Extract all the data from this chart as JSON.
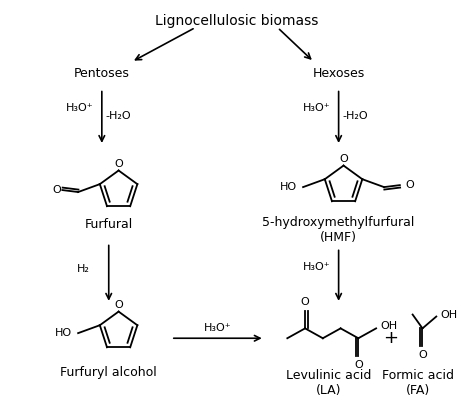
{
  "bg_color": "#ffffff",
  "text_color": "#000000",
  "title": "Lignocellulosic biomass",
  "label_pentoses": "Pentoses",
  "label_hexoses": "Hexoses",
  "label_furfural": "Furfural",
  "label_hmf": "5-hydroxymethylfurfural\n(HMF)",
  "label_furfuryl": "Furfuryl alcohol",
  "label_levulinic": "Levulinic acid\n(LA)",
  "label_formic": "Formic acid\n(FA)",
  "label_h3o1": "H₃O⁺",
  "label_h2o1": "-H₂O",
  "label_h3o2": "H₃O⁺",
  "label_h2o2": "-H₂O",
  "label_h2": "H₂",
  "label_h3o3": "H₃O⁺",
  "label_h3o4": "H₃O⁺",
  "font_size_title": 10,
  "font_size_label": 9,
  "font_size_arrow": 8,
  "font_size_atom": 7
}
